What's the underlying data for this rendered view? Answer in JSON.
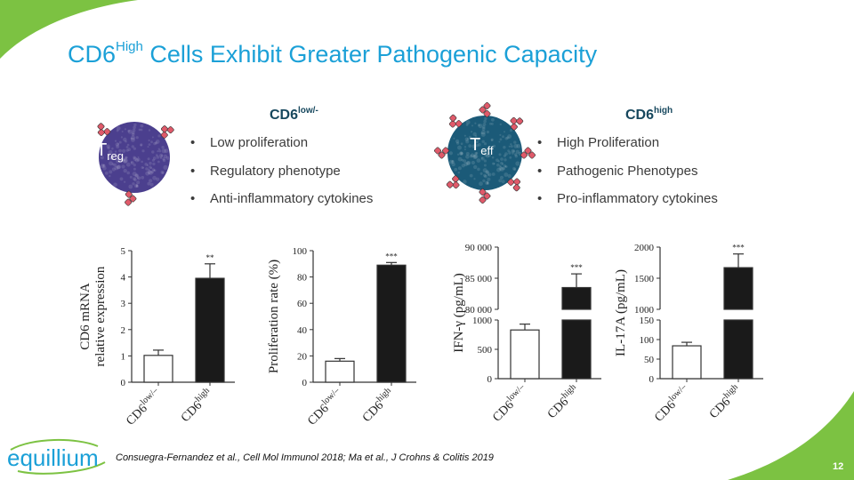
{
  "colors": {
    "title": "#1ba0d7",
    "accent_green": "#7cc242",
    "treg_cell": "#4b3f8e",
    "teff_cell": "#1b5a78",
    "receptor": "#e05a6a",
    "group_heading": "#17485e"
  },
  "header": {
    "title_prefix": "CD6",
    "title_sup": "High",
    "title_rest": " Cells Exhibit Greater Pathogenic Capacity"
  },
  "groups": [
    {
      "cell_label": "T",
      "cell_sub": "reg",
      "heading": "CD6",
      "heading_sup": "low/-",
      "bullets": [
        "Low proliferation",
        "Regulatory phenotype",
        "Anti-inflammatory cytokines"
      ],
      "bullet_glyph": "•"
    },
    {
      "cell_label": "T",
      "cell_sub": "eff",
      "heading": "CD6",
      "heading_sup": "high",
      "bullets": [
        "High Proliferation",
        "Pathogenic Phenotypes",
        "Pro-inflammatory cytokines"
      ],
      "bullet_glyph": "•"
    }
  ],
  "chart_data": [
    {
      "type": "bar",
      "ylabel_lines": [
        "CD6 mRNA",
        "relative expression"
      ],
      "categories": [
        {
          "base": "CD6",
          "sup": "low/–"
        },
        {
          "base": "CD6",
          "sup": "high"
        }
      ],
      "values": [
        1.02,
        3.95
      ],
      "errors": [
        0.2,
        0.55
      ],
      "fills": [
        "#ffffff",
        "#1a1a1a"
      ],
      "ylim": [
        0,
        5
      ],
      "yticks": [
        "0",
        "1",
        "2",
        "3",
        "4",
        "5"
      ],
      "significance": [
        "",
        "**"
      ]
    },
    {
      "type": "bar",
      "ylabel_lines": [
        "Proliferation rate (%)"
      ],
      "categories": [
        {
          "base": "CD6",
          "sup": "low/–"
        },
        {
          "base": "CD6",
          "sup": "high"
        }
      ],
      "values": [
        16,
        89
      ],
      "errors": [
        2,
        2
      ],
      "fills": [
        "#ffffff",
        "#1a1a1a"
      ],
      "ylim": [
        0,
        100
      ],
      "yticks": [
        "0",
        "20",
        "40",
        "60",
        "80",
        "100"
      ],
      "significance": [
        "",
        "***"
      ]
    },
    {
      "type": "bar",
      "broken_axis": true,
      "ylabel_lines": [
        "IFN-γ (pg/mL)"
      ],
      "categories": [
        {
          "base": "CD6",
          "sup": "low/–"
        },
        {
          "base": "CD6",
          "sup": "high"
        }
      ],
      "values": [
        830,
        83500
      ],
      "errors": [
        100,
        2200
      ],
      "fills": [
        "#ffffff",
        "#1a1a1a"
      ],
      "lower_range": [
        0,
        1000
      ],
      "lower_ticks": [
        "0",
        "500",
        "1000"
      ],
      "upper_range": [
        80000,
        90000
      ],
      "upper_ticks": [
        "80 000",
        "85 000",
        "90 000"
      ],
      "significance": [
        "",
        "***"
      ]
    },
    {
      "type": "bar",
      "broken_axis": true,
      "ylabel_lines": [
        "IL-17A (pg/mL)"
      ],
      "categories": [
        {
          "base": "CD6",
          "sup": "low/–"
        },
        {
          "base": "CD6",
          "sup": "high"
        }
      ],
      "values": [
        84,
        1670
      ],
      "errors": [
        9,
        220
      ],
      "fills": [
        "#ffffff",
        "#1a1a1a"
      ],
      "lower_range": [
        0,
        150
      ],
      "lower_ticks": [
        "0",
        "50",
        "100",
        "150"
      ],
      "upper_range": [
        1000,
        2000
      ],
      "upper_ticks": [
        "1000",
        "1500",
        "2000"
      ],
      "significance": [
        "",
        "***"
      ]
    }
  ],
  "footer": {
    "logo_text": "equillium",
    "reference": "Consuegra-Fernandez et al., Cell Mol Immunol 2018; Ma et al., J Crohns & Colitis 2019",
    "page_number": "12"
  }
}
